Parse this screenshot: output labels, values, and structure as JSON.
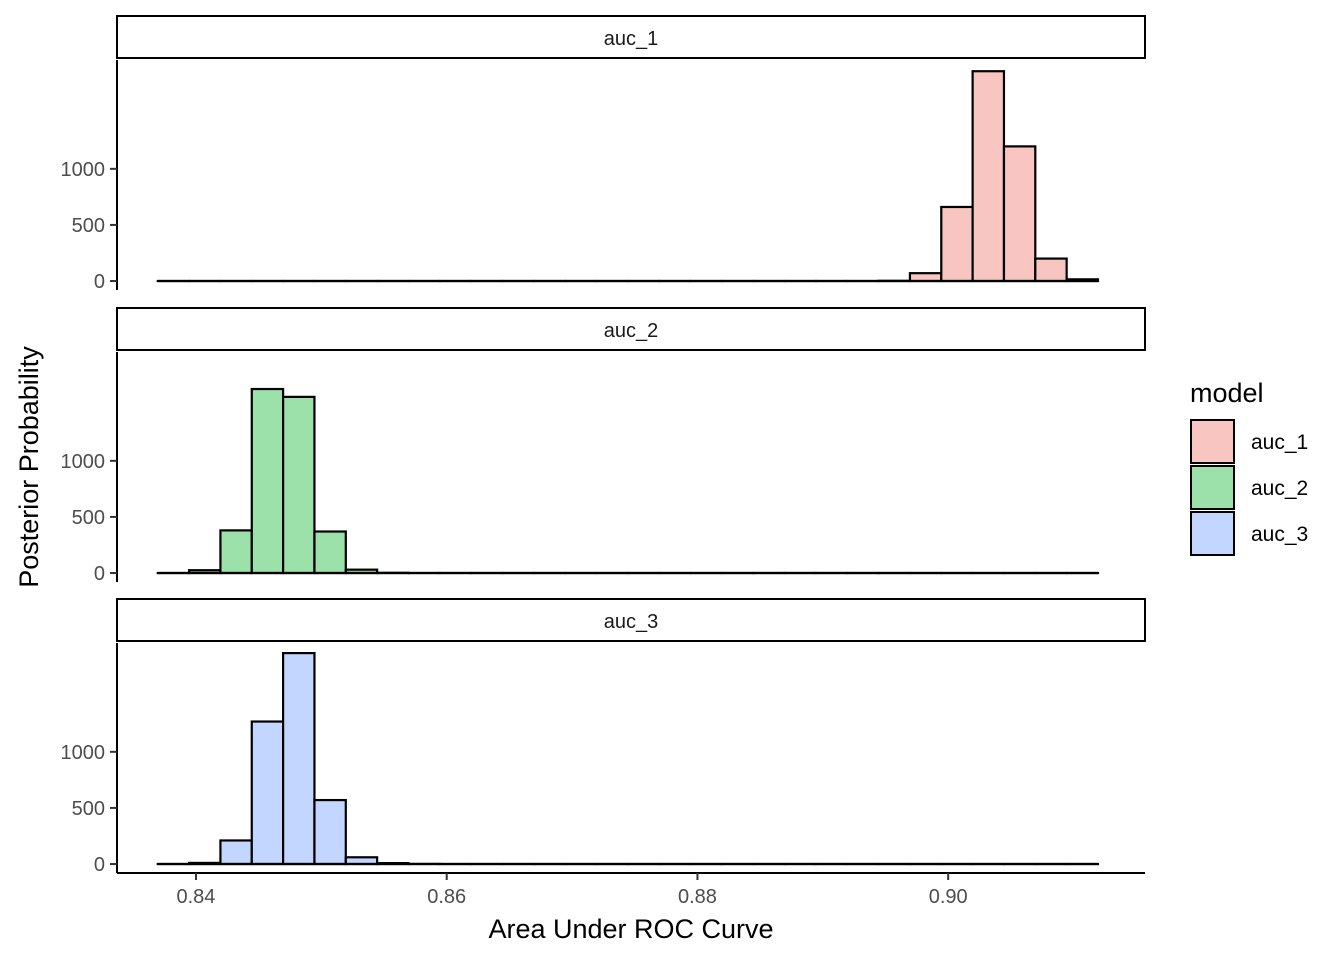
{
  "chart_data": {
    "type": "bar",
    "subtype": "faceted-histogram",
    "xlabel": "Area Under ROC Curve",
    "ylabel": "Posterior Probability",
    "x_ticks": [
      0.84,
      0.86,
      0.88,
      0.9
    ],
    "x_tick_labels": [
      "0.84",
      "0.86",
      "0.88",
      "0.90"
    ],
    "xlim": [
      0.8337,
      0.9157
    ],
    "y_ticks": [
      0,
      500,
      1000
    ],
    "y_tick_labels": [
      "0",
      "500",
      "1000"
    ],
    "ylim": [
      -80,
      1970
    ],
    "bin_width": 0.0025,
    "bin_centers": [
      0.8382,
      0.8407,
      0.8432,
      0.8457,
      0.8482,
      0.8507,
      0.8532,
      0.8557,
      0.8582,
      0.8607,
      0.8632,
      0.8657,
      0.8682,
      0.8707,
      0.8732,
      0.8757,
      0.8782,
      0.8807,
      0.8832,
      0.8857,
      0.8882,
      0.8907,
      0.8932,
      0.8957,
      0.8982,
      0.9007,
      0.9032,
      0.9057,
      0.9082,
      0.9107
    ],
    "grid": false,
    "legend": {
      "title": "model",
      "position": "right",
      "entries": [
        "auc_1",
        "auc_2",
        "auc_3"
      ]
    },
    "panels": [
      {
        "name": "auc_1",
        "color": "#F8C5C0",
        "counts": [
          0,
          0,
          0,
          0,
          0,
          0,
          0,
          0,
          0,
          0,
          0,
          0,
          0,
          0,
          0,
          0,
          0,
          0,
          0,
          0,
          0,
          0,
          0,
          2,
          70,
          660,
          1870,
          1200,
          200,
          15
        ]
      },
      {
        "name": "auc_2",
        "color": "#9CE0AA",
        "counts": [
          0,
          25,
          380,
          1640,
          1570,
          370,
          30,
          2,
          0,
          0,
          0,
          0,
          0,
          0,
          0,
          0,
          0,
          0,
          0,
          0,
          0,
          0,
          0,
          0,
          0,
          0,
          0,
          0,
          0,
          0
        ]
      },
      {
        "name": "auc_3",
        "color": "#C2D6FF",
        "counts": [
          0,
          10,
          210,
          1270,
          1880,
          570,
          60,
          8,
          1,
          0,
          0,
          0,
          0,
          0,
          0,
          0,
          0,
          0,
          0,
          0,
          0,
          0,
          0,
          0,
          0,
          0,
          0,
          0,
          0,
          0
        ]
      }
    ]
  }
}
